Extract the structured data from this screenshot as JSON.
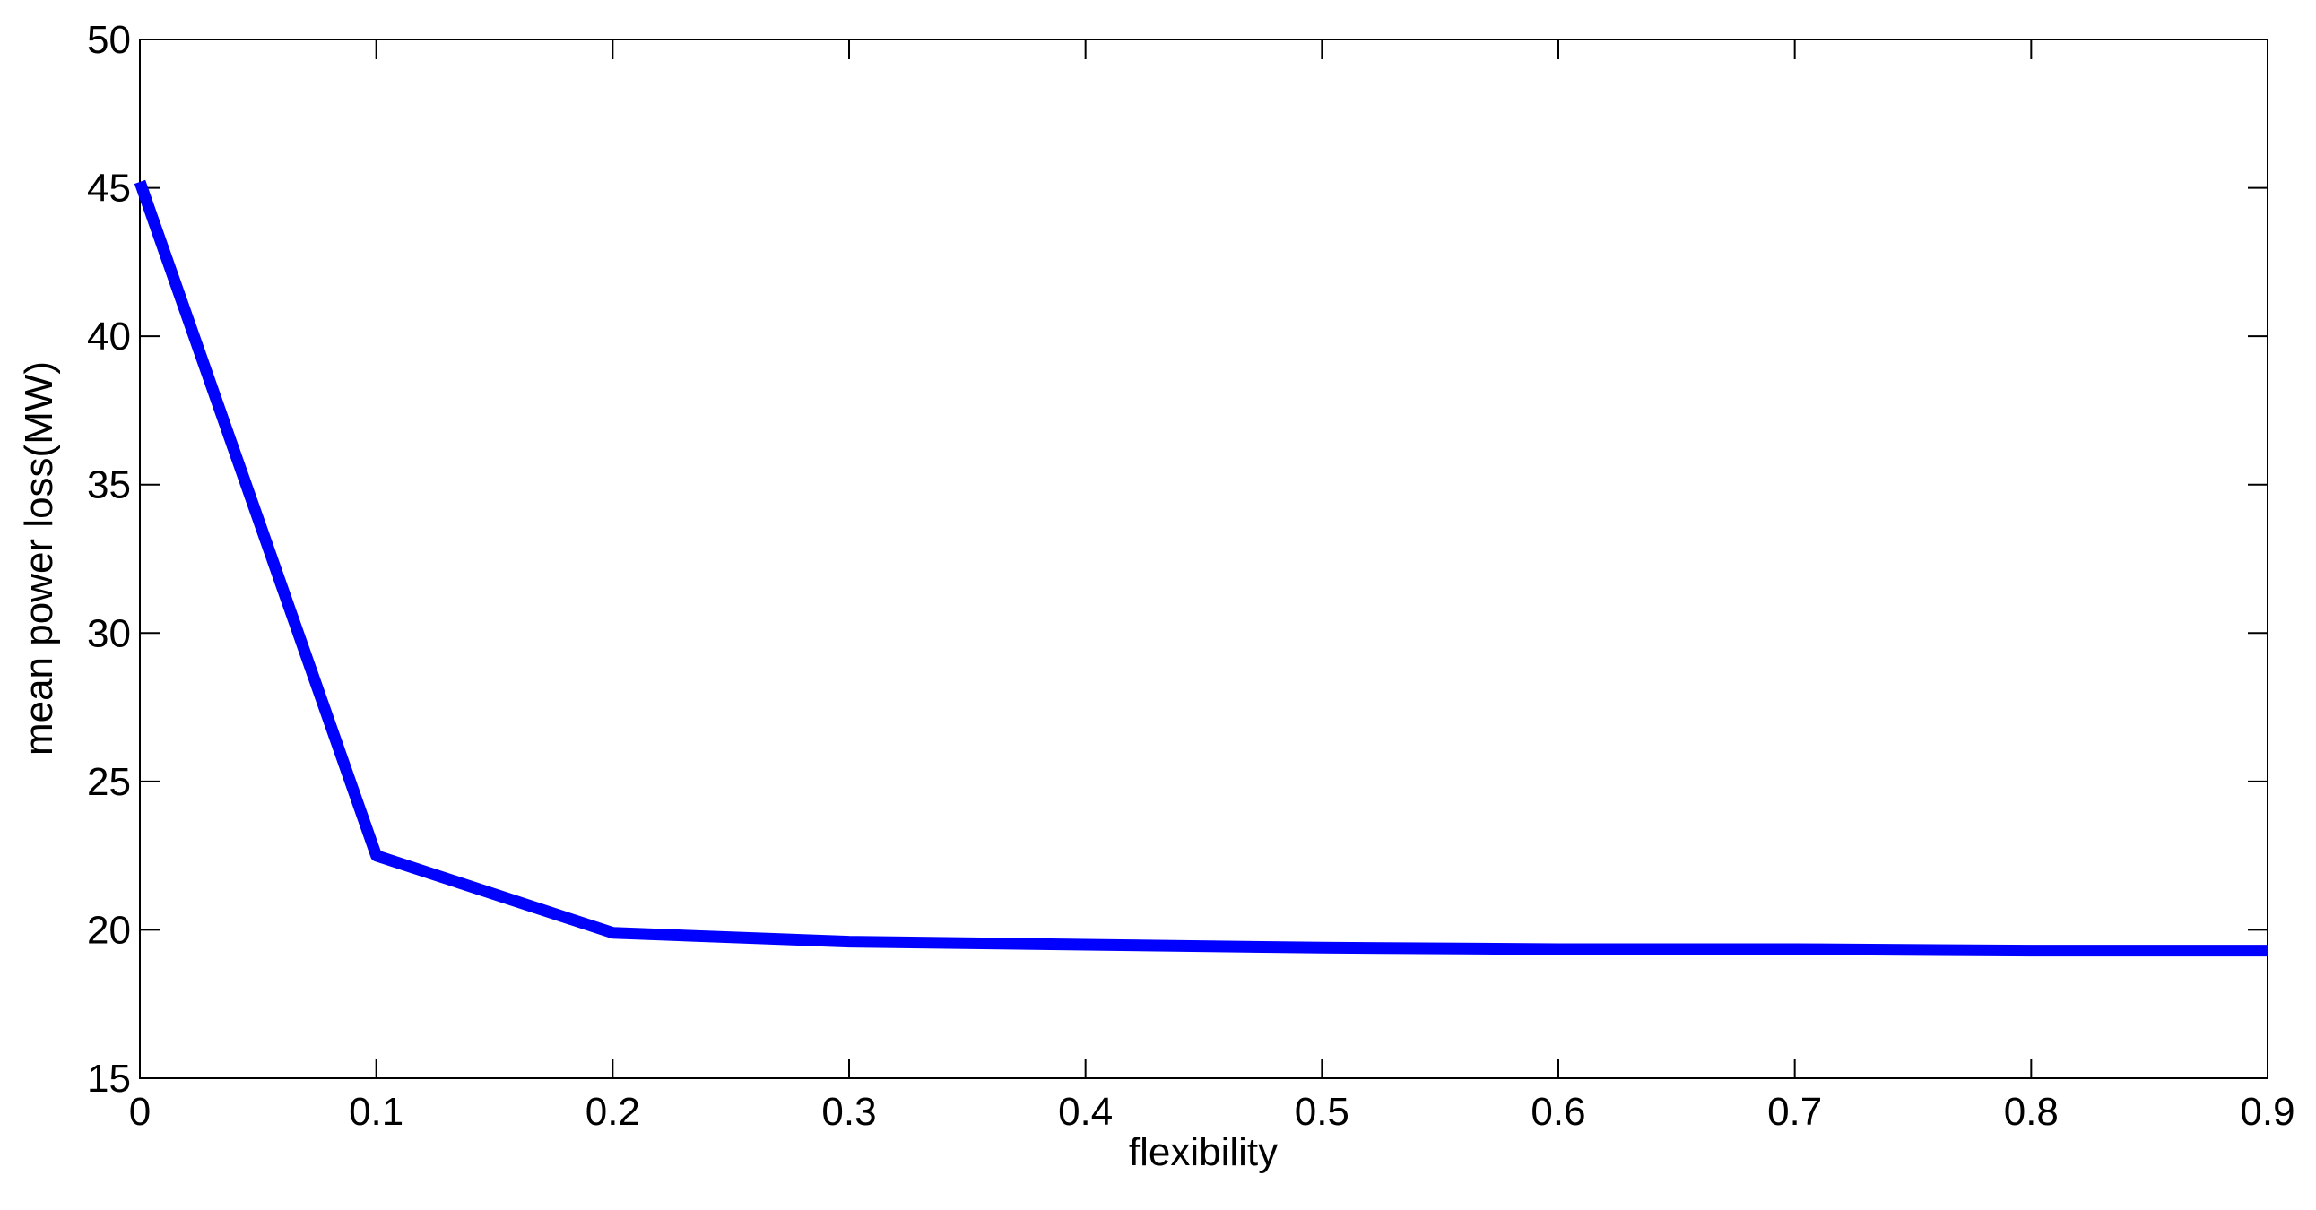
{
  "chart_data": {
    "type": "line",
    "x_label": "flexibility",
    "y_label": "mean power loss(MW)",
    "x": [
      0,
      0.1,
      0.2,
      0.3,
      0.4,
      0.5,
      0.6,
      0.7,
      0.8,
      0.9
    ],
    "series": [
      {
        "color": "#0000ff",
        "values": [
          45.2,
          22.5,
          19.9,
          19.6,
          19.5,
          19.4,
          19.35,
          19.35,
          19.3,
          19.3
        ]
      }
    ],
    "xlim": [
      0,
      0.9
    ],
    "xticks": [
      0,
      0.1,
      0.2,
      0.3,
      0.4,
      0.5,
      0.6,
      0.7,
      0.8,
      0.9
    ],
    "ylim": [
      15,
      50
    ],
    "yticks": [
      15,
      20,
      25,
      30,
      35,
      40,
      45,
      50
    ],
    "grid": false
  }
}
